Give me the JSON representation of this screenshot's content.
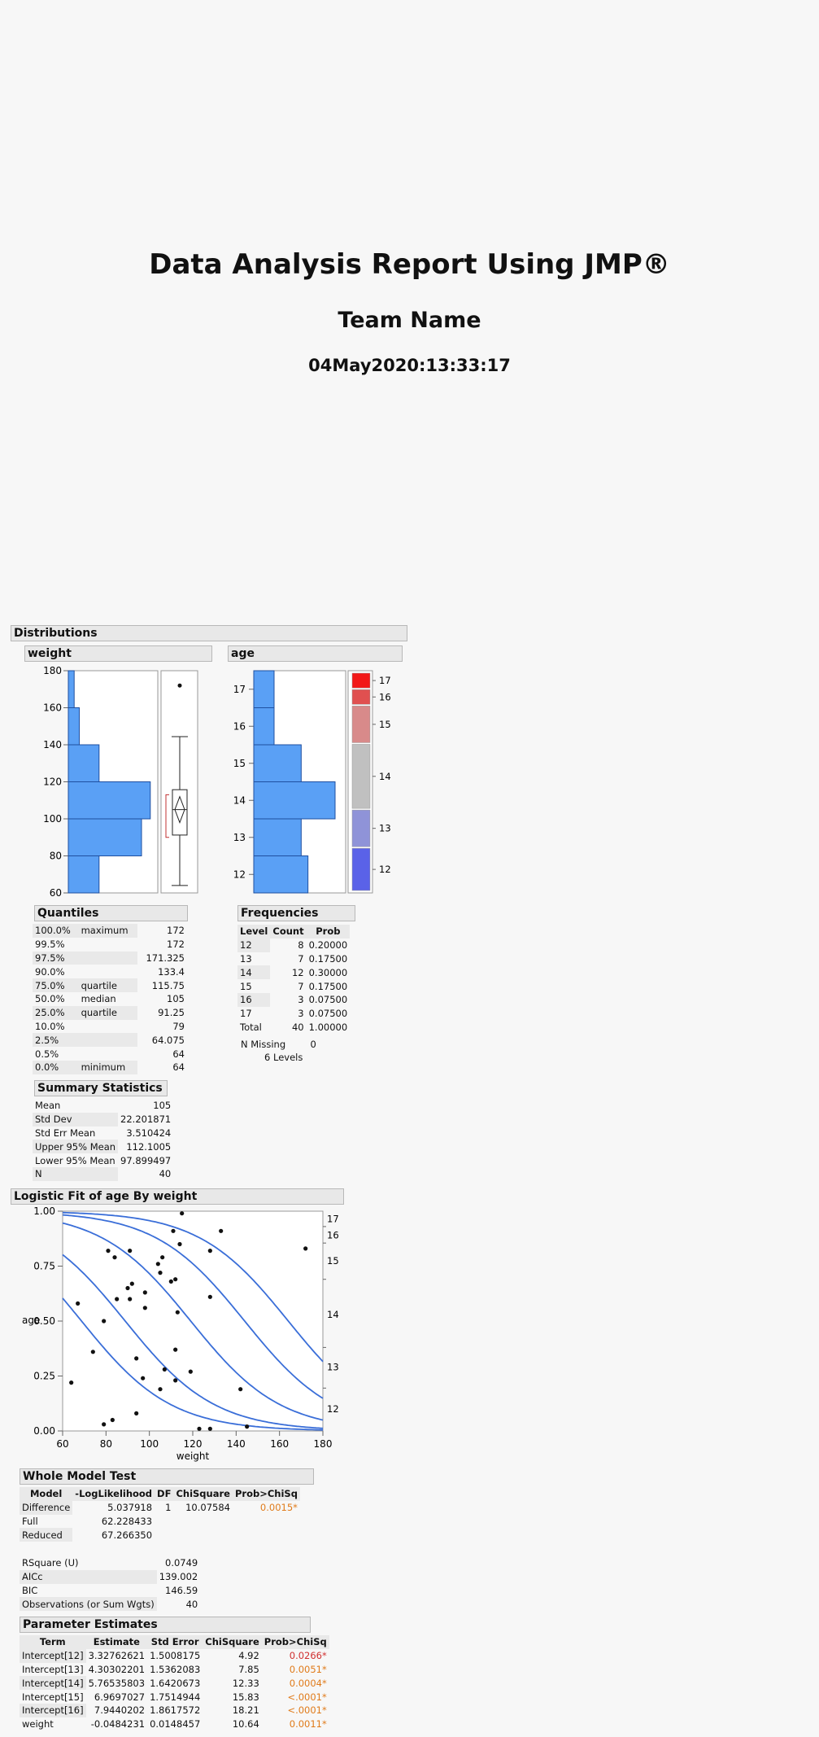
{
  "report": {
    "title": "Data Analysis Report Using JMP®",
    "team": "Team Name",
    "datetime": "04May2020:13:33:17"
  },
  "distributions": {
    "header": "Distributions",
    "weight": {
      "header": "weight",
      "axis_ticks": [
        "60",
        "80",
        "100",
        "120",
        "140",
        "160",
        "180"
      ],
      "histogram_data": {
        "bins": [
          [
            60,
            80
          ],
          [
            80,
            100
          ],
          [
            100,
            120
          ],
          [
            120,
            140
          ],
          [
            140,
            160
          ],
          [
            160,
            180
          ]
        ],
        "relative_counts": [
          0.42,
          1.0,
          1.12,
          0.42,
          0.15,
          0.08
        ]
      },
      "quantiles": {
        "header": "Quantiles",
        "rows": [
          {
            "pct": "100.0%",
            "label": "maximum",
            "value": "172"
          },
          {
            "pct": "99.5%",
            "label": "",
            "value": "172"
          },
          {
            "pct": "97.5%",
            "label": "",
            "value": "171.325"
          },
          {
            "pct": "90.0%",
            "label": "",
            "value": "133.4"
          },
          {
            "pct": "75.0%",
            "label": "quartile",
            "value": "115.75"
          },
          {
            "pct": "50.0%",
            "label": "median",
            "value": "105"
          },
          {
            "pct": "25.0%",
            "label": "quartile",
            "value": "91.25"
          },
          {
            "pct": "10.0%",
            "label": "",
            "value": "79"
          },
          {
            "pct": "2.5%",
            "label": "",
            "value": "64.075"
          },
          {
            "pct": "0.5%",
            "label": "",
            "value": "64"
          },
          {
            "pct": "0.0%",
            "label": "minimum",
            "value": "64"
          }
        ]
      },
      "summary": {
        "header": "Summary Statistics",
        "rows": [
          {
            "label": "Mean",
            "value": "105"
          },
          {
            "label": "Std Dev",
            "value": "22.201871"
          },
          {
            "label": "Std Err Mean",
            "value": "3.510424"
          },
          {
            "label": "Upper 95% Mean",
            "value": "112.1005"
          },
          {
            "label": "Lower 95% Mean",
            "value": "97.899497"
          },
          {
            "label": "N",
            "value": "40"
          }
        ]
      }
    },
    "age": {
      "header": "age",
      "axis_ticks": [
        "12",
        "13",
        "14",
        "15",
        "16",
        "17"
      ],
      "mosaic_labels": [
        "17",
        "16",
        "15",
        "14",
        "13",
        "12"
      ],
      "mosaic_colors": [
        "#f21818",
        "#e05050",
        "#d88a8a",
        "#c0c0c0",
        "#8f93d8",
        "#5a62e8"
      ],
      "frequencies": {
        "header": "Frequencies",
        "columns": [
          "Level",
          "Count",
          "Prob"
        ],
        "rows": [
          {
            "level": "12",
            "count": "8",
            "prob": "0.20000"
          },
          {
            "level": "13",
            "count": "7",
            "prob": "0.17500"
          },
          {
            "level": "14",
            "count": "12",
            "prob": "0.30000"
          },
          {
            "level": "15",
            "count": "7",
            "prob": "0.17500"
          },
          {
            "level": "16",
            "count": "3",
            "prob": "0.07500"
          },
          {
            "level": "17",
            "count": "3",
            "prob": "0.07500"
          }
        ],
        "total": {
          "label": "Total",
          "count": "40",
          "prob": "1.00000"
        },
        "missing": {
          "label": "N Missing",
          "value": "0"
        },
        "levels": {
          "value": "6",
          "label": "Levels"
        }
      }
    }
  },
  "logistic": {
    "header": "Logistic Fit of age By weight",
    "ylabel": "age",
    "xlabel": "weight",
    "y_ticks": [
      "0.00",
      "0.25",
      "0.50",
      "0.75",
      "1.00"
    ],
    "x_ticks": [
      "60",
      "80",
      "100",
      "120",
      "140",
      "160",
      "180"
    ],
    "right_labels": [
      "17",
      "16",
      "15",
      "14",
      "13",
      "12"
    ],
    "chart_data": {
      "type": "scatter",
      "xlim": [
        60,
        180
      ],
      "ylim": [
        0,
        1
      ],
      "xlabel": "weight",
      "ylabel": "age",
      "points": [
        [
          64,
          0.22
        ],
        [
          67,
          0.58
        ],
        [
          74,
          0.36
        ],
        [
          79,
          0.5
        ],
        [
          79,
          0.03
        ],
        [
          81,
          0.82
        ],
        [
          83,
          0.05
        ],
        [
          84,
          0.79
        ],
        [
          85,
          0.6
        ],
        [
          90,
          0.65
        ],
        [
          91,
          0.82
        ],
        [
          91,
          0.6
        ],
        [
          92,
          0.67
        ],
        [
          94,
          0.33
        ],
        [
          94,
          0.08
        ],
        [
          97,
          0.24
        ],
        [
          98,
          0.63
        ],
        [
          98,
          0.56
        ],
        [
          104,
          0.76
        ],
        [
          105,
          0.72
        ],
        [
          105,
          0.19
        ],
        [
          106,
          0.79
        ],
        [
          107,
          0.28
        ],
        [
          110,
          0.68
        ],
        [
          111,
          0.91
        ],
        [
          112,
          0.37
        ],
        [
          112,
          0.23
        ],
        [
          112,
          0.69
        ],
        [
          113,
          0.54
        ],
        [
          114,
          0.85
        ],
        [
          115,
          0.99
        ],
        [
          119,
          0.27
        ],
        [
          123,
          0.01
        ],
        [
          128,
          0.82
        ],
        [
          128,
          0.61
        ],
        [
          128,
          0.01
        ],
        [
          133,
          0.91
        ],
        [
          142,
          0.19
        ],
        [
          145,
          0.02
        ],
        [
          172,
          0.83
        ]
      ],
      "curves_intercepts": [
        3.32762621,
        4.30302201,
        5.76535803,
        6.9697027,
        7.9440202
      ],
      "curves_slope": -0.0484231
    }
  },
  "whole_model": {
    "header": "Whole Model Test",
    "columns": [
      "Model",
      "-LogLikelihood",
      "DF",
      "ChiSquare",
      "Prob>ChiSq"
    ],
    "rows": [
      {
        "model": "Difference",
        "loglik": "5.037918",
        "df": "1",
        "chisq": "10.07584",
        "prob": "0.0015*"
      },
      {
        "model": "Full",
        "loglik": "62.228433",
        "df": "",
        "chisq": "",
        "prob": ""
      },
      {
        "model": "Reduced",
        "loglik": "67.266350",
        "df": "",
        "chisq": "",
        "prob": ""
      }
    ],
    "fit_stats": [
      {
        "label": "RSquare (U)",
        "value": "0.0749"
      },
      {
        "label": "AICc",
        "value": "139.002"
      },
      {
        "label": "BIC",
        "value": "146.59"
      },
      {
        "label": "Observations (or Sum Wgts)",
        "value": "40"
      }
    ]
  },
  "parameters": {
    "header": "Parameter Estimates",
    "columns": [
      "Term",
      "Estimate",
      "Std Error",
      "ChiSquare",
      "Prob>ChiSq"
    ],
    "rows": [
      {
        "term": "Intercept[12]",
        "est": "3.32762621",
        "se": "1.5008175",
        "chisq": "4.92",
        "prob": "0.0266*",
        "color": "red"
      },
      {
        "term": "Intercept[13]",
        "est": "4.30302201",
        "se": "1.5362083",
        "chisq": "7.85",
        "prob": "0.0051*",
        "color": "orange"
      },
      {
        "term": "Intercept[14]",
        "est": "5.76535803",
        "se": "1.6420673",
        "chisq": "12.33",
        "prob": "0.0004*",
        "color": "orange"
      },
      {
        "term": "Intercept[15]",
        "est": "6.9697027",
        "se": "1.7514944",
        "chisq": "15.83",
        "prob": "<.0001*",
        "color": "orange"
      },
      {
        "term": "Intercept[16]",
        "est": "7.9440202",
        "se": "1.8617572",
        "chisq": "18.21",
        "prob": "<.0001*",
        "color": "orange"
      },
      {
        "term": "weight",
        "est": "-0.0484231",
        "se": "0.0148457",
        "chisq": "10.64",
        "prob": "0.0011*",
        "color": "orange"
      }
    ]
  }
}
